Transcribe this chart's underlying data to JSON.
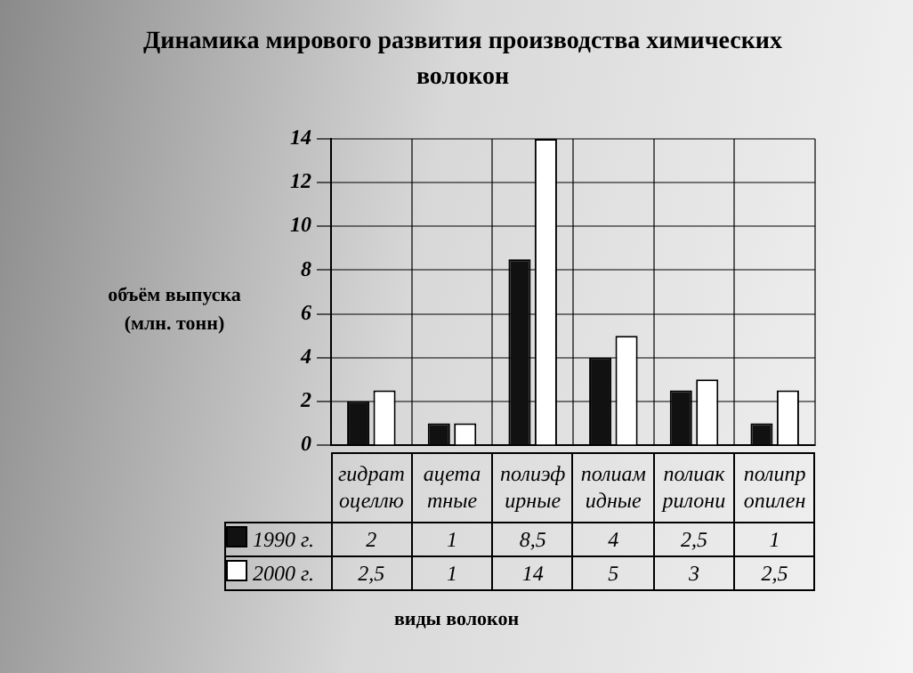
{
  "chart_data": {
    "type": "bar",
    "title": "Динамика мирового развития производства химических волокон",
    "ylabel": "объём выпуска (млн. тонн)",
    "xlabel": "виды волокон",
    "categories": [
      "гидрат оцеллю",
      "ацета тные",
      "полиэф ирные",
      "полиам идные",
      "полиак рилони",
      "полипр опилен"
    ],
    "series": [
      {
        "name": "1990 г.",
        "color": "#111111",
        "values": [
          2,
          1,
          8.5,
          4,
          2.5,
          1
        ],
        "value_labels": [
          "2",
          "1",
          "8,5",
          "4",
          "2,5",
          "1"
        ]
      },
      {
        "name": "2000 г.",
        "color": "#ffffff",
        "values": [
          2.5,
          1,
          14,
          5,
          3,
          2.5
        ],
        "value_labels": [
          "2,5",
          "1",
          "14",
          "5",
          "3",
          "2,5"
        ]
      }
    ],
    "ylim": [
      0,
      14
    ],
    "yticks": [
      0,
      2,
      4,
      6,
      8,
      10,
      12,
      14
    ],
    "grid": "y",
    "legend": "bottom",
    "data_labels": true
  }
}
